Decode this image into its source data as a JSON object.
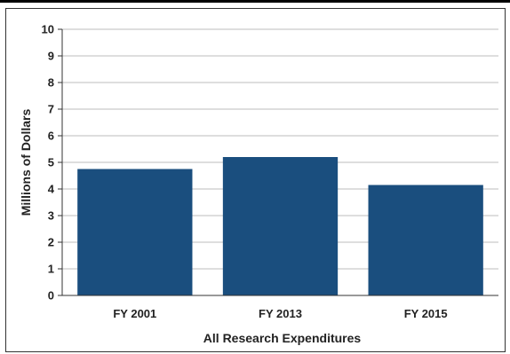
{
  "chart_data": {
    "type": "bar",
    "categories": [
      "FY 2001",
      "FY 2013",
      "FY 2015"
    ],
    "values": [
      4.75,
      5.2,
      4.15
    ],
    "xlabel": "All Research Expenditures",
    "ylabel": "Millions of Dollars",
    "ylim": [
      0,
      10
    ],
    "yticks": [
      0,
      1,
      2,
      3,
      4,
      5,
      6,
      7,
      8,
      9,
      10
    ],
    "grid": true,
    "bar_color": "#1a4e7e",
    "grid_color": "#bdbdbd"
  }
}
